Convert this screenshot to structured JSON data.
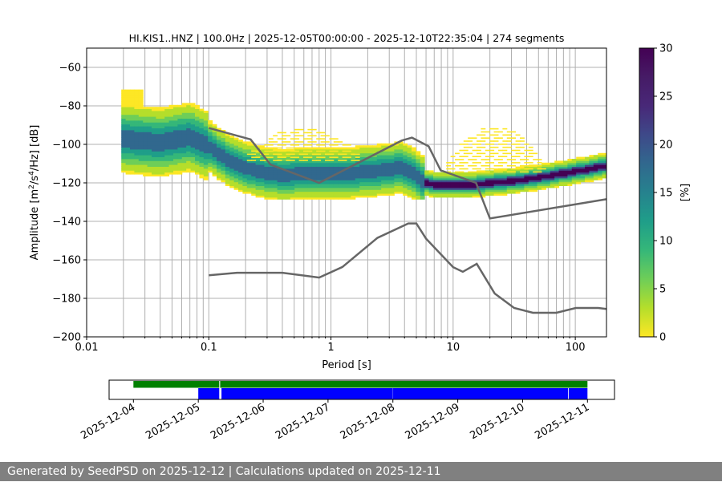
{
  "chart_data": [
    {
      "type": "heatmap",
      "title": "HI.KIS1..HNZ | 100.0Hz | 2025-12-05T00:00:00 - 2025-12-10T22:35:04 | 274 segments",
      "xlabel": "Period [s]",
      "ylabel_main": "Amplitude [m",
      "ylabel_sup1": "2",
      "ylabel_mid": "/s",
      "ylabel_sup2": "4",
      "ylabel_end": "/Hz] [dB]",
      "x_scale": "log",
      "xlim": [
        0.01,
        180
      ],
      "ylim": [
        -200,
        -50
      ],
      "x_ticks": [
        0.01,
        0.1,
        1,
        10,
        100
      ],
      "x_tick_labels": [
        "0.01",
        "0.1",
        "1",
        "10",
        "100"
      ],
      "y_ticks": [
        -200,
        -180,
        -160,
        -140,
        -120,
        -100,
        -80,
        -60
      ],
      "y_tick_labels": [
        "−200",
        "−180",
        "−160",
        "−140",
        "−120",
        "−100",
        "−80",
        "−60"
      ],
      "grid": "vertical lines at log minor ticks from 0.02 s, horizontal at major y ticks",
      "colormap": "viridis_r",
      "colorbar": {
        "label": "[%]",
        "range": [
          0,
          30
        ],
        "ticks": [
          0,
          5,
          10,
          15,
          20,
          25,
          30
        ],
        "tick_labels": [
          "0",
          "5",
          "10",
          "15",
          "20",
          "25",
          "30"
        ]
      },
      "density_ridge": {
        "period": [
          0.02,
          0.04,
          0.07,
          0.1,
          0.15,
          0.25,
          0.4,
          0.6,
          0.9,
          1.3,
          2.0,
          3.0,
          3.7,
          4.5,
          5.5,
          7,
          10,
          14,
          20,
          30,
          50,
          80,
          120,
          180
        ],
        "db": [
          -97,
          -99,
          -96,
          -101,
          -109,
          -114,
          -116,
          -115,
          -115,
          -115,
          -114,
          -113,
          -112,
          -114,
          -119,
          -121,
          -121,
          -121,
          -120,
          -119,
          -117,
          -115,
          -113,
          -111
        ]
      },
      "nhnm": {
        "period": [
          0.1,
          0.22,
          0.32,
          0.8,
          3.8,
          4.6,
          6.3,
          7.9,
          15.4,
          20,
          180
        ],
        "db": [
          -91.5,
          -97.4,
          -110.5,
          -120,
          -98,
          -96.5,
          -101,
          -113.5,
          -120,
          -138.5,
          -128.5
        ]
      },
      "nlnm": {
        "period": [
          0.1,
          0.17,
          0.4,
          0.8,
          1.24,
          2.4,
          4.3,
          5,
          6,
          10,
          12,
          15.6,
          21.9,
          31.6,
          45,
          70,
          101,
          154,
          180
        ],
        "db": [
          -168,
          -166.7,
          -166.7,
          -169.2,
          -163.7,
          -148.6,
          -141.1,
          -141.1,
          -149,
          -163.8,
          -166.2,
          -162.1,
          -177.5,
          -185,
          -187.5,
          -187.5,
          -185,
          -185,
          -185.5
        ]
      }
    },
    {
      "type": "timeline",
      "x_tick_labels": [
        "2025-12-04",
        "2025-12-05",
        "2025-12-06",
        "2025-12-07",
        "2025-12-08",
        "2025-12-09",
        "2025-12-10",
        "2025-12-11"
      ],
      "xlim": [
        "2025-12-03T15:00",
        "2025-12-11T10:00"
      ],
      "rows": [
        {
          "name": "top",
          "color": "#008000",
          "segments": [
            [
              "2025-12-04T00:00",
              "2025-12-05T07:45"
            ],
            [
              "2025-12-05T08:05",
              "2025-12-11T00:00"
            ]
          ]
        },
        {
          "name": "bottom",
          "color": "#0000ff",
          "segments": [
            [
              "2025-12-05T00:00",
              "2025-12-05T07:45"
            ],
            [
              "2025-12-05T08:35",
              "2025-12-08T00:00"
            ],
            [
              "2025-12-08T00:05",
              "2025-12-10T16:50"
            ],
            [
              "2025-12-10T17:05",
              "2025-12-11T00:00"
            ]
          ]
        }
      ]
    }
  ],
  "footer": {
    "text": "Generated by SeedPSD on 2025-12-12 | Calculations updated on 2025-12-11"
  }
}
